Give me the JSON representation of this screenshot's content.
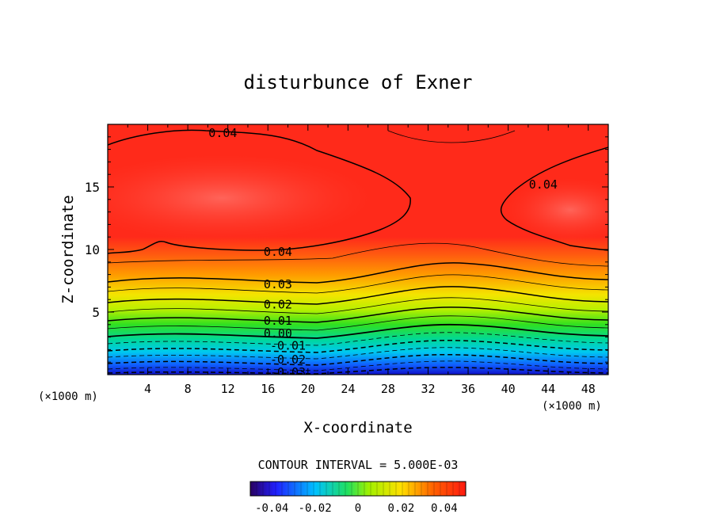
{
  "chart_data": {
    "type": "heatmap",
    "title": "disturbunce of Exner",
    "xlabel": "X-coordinate",
    "ylabel": "Z-coordinate",
    "x_unit": "(×1000 m)",
    "x_unit_right": "(×1000 m)",
    "xlim": [
      0,
      50
    ],
    "ylim": [
      0,
      20
    ],
    "x_ticks": [
      "4",
      "8",
      "12",
      "16",
      "20",
      "24",
      "28",
      "32",
      "36",
      "40",
      "44",
      "48"
    ],
    "y_ticks": [
      "5",
      "10",
      "15"
    ],
    "contour_interval_label": "CONTOUR INTERVAL = 5.000E-03",
    "contour_labels": [
      {
        "text": "0.04",
        "x": 11.5,
        "y": 19.3
      },
      {
        "text": "0.04",
        "x": 43.5,
        "y": 15.2
      },
      {
        "text": "0.04",
        "x": 17.0,
        "y": 9.8
      },
      {
        "text": "0.03",
        "x": 17.0,
        "y": 7.2
      },
      {
        "text": "0.02",
        "x": 17.0,
        "y": 5.6
      },
      {
        "text": "0.01",
        "x": 17.0,
        "y": 4.3
      },
      {
        "text": "0.00",
        "x": 17.0,
        "y": 3.3
      },
      {
        "text": "-0.01",
        "x": 18.0,
        "y": 2.3
      },
      {
        "text": "-0.02",
        "x": 18.0,
        "y": 1.2
      },
      {
        "text": "-0.03",
        "x": 18.0,
        "y": 0.2
      }
    ],
    "value_range": [
      -0.05,
      0.05
    ],
    "colorbar_ticks": [
      "-0.04",
      "-0.02",
      "0",
      "0.02",
      "0.04"
    ]
  }
}
